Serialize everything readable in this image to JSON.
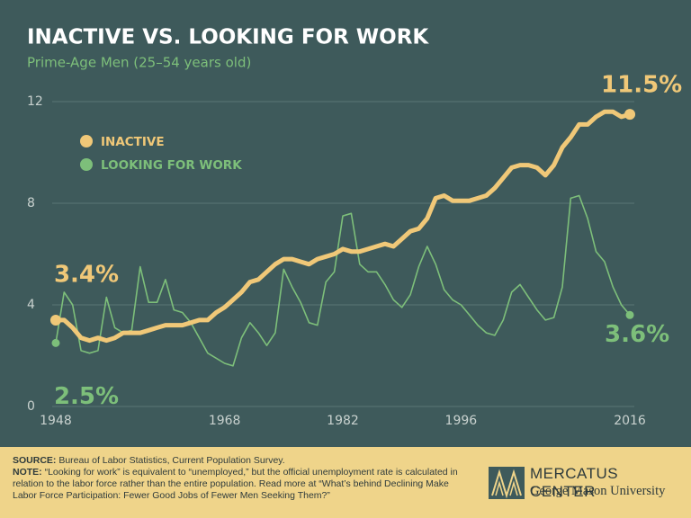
{
  "chart_data": {
    "type": "line",
    "title": "INACTIVE VS. LOOKING FOR WORK",
    "subtitle": "Prime-Age Men (25–54 years old)",
    "x": [
      1948,
      1949,
      1950,
      1951,
      1952,
      1953,
      1954,
      1955,
      1956,
      1957,
      1958,
      1959,
      1960,
      1961,
      1962,
      1963,
      1964,
      1965,
      1966,
      1967,
      1968,
      1969,
      1970,
      1971,
      1972,
      1973,
      1974,
      1975,
      1976,
      1977,
      1978,
      1979,
      1980,
      1981,
      1982,
      1983,
      1984,
      1985,
      1986,
      1987,
      1988,
      1989,
      1990,
      1991,
      1992,
      1993,
      1994,
      1995,
      1996,
      1997,
      1998,
      1999,
      2000,
      2001,
      2002,
      2003,
      2004,
      2005,
      2006,
      2007,
      2008,
      2009,
      2010,
      2011,
      2012,
      2013,
      2014,
      2015,
      2016
    ],
    "xlim": [
      1946,
      2018
    ],
    "xticks": [
      1948,
      1968,
      1982,
      1996,
      2016
    ],
    "ylim": [
      0,
      12
    ],
    "yticks": [
      0,
      4,
      8,
      12
    ],
    "grid": true,
    "series": [
      {
        "name": "INACTIVE",
        "color": "#f0c878",
        "start_label": "3.4%",
        "end_label": "11.5%",
        "values": [
          3.4,
          3.4,
          3.1,
          2.7,
          2.6,
          2.7,
          2.6,
          2.7,
          2.9,
          2.9,
          2.9,
          3.0,
          3.1,
          3.2,
          3.2,
          3.2,
          3.3,
          3.4,
          3.4,
          3.7,
          3.9,
          4.2,
          4.5,
          4.9,
          5.0,
          5.3,
          5.6,
          5.8,
          5.8,
          5.7,
          5.6,
          5.8,
          5.9,
          6.0,
          6.2,
          6.1,
          6.1,
          6.2,
          6.3,
          6.4,
          6.3,
          6.6,
          6.9,
          7.0,
          7.4,
          8.2,
          8.3,
          8.1,
          8.1,
          8.1,
          8.2,
          8.3,
          8.6,
          9.0,
          9.4,
          9.5,
          9.5,
          9.4,
          9.1,
          9.5,
          10.2,
          10.6,
          11.1,
          11.1,
          11.4,
          11.6,
          11.6,
          11.4,
          11.5
        ]
      },
      {
        "name": "LOOKING FOR WORK",
        "color": "#7dbf7a",
        "start_label": "2.5%",
        "end_label": "3.6%",
        "values": [
          2.5,
          4.5,
          4.0,
          2.2,
          2.1,
          2.2,
          4.3,
          3.1,
          2.9,
          3.0,
          5.5,
          4.1,
          4.1,
          5.0,
          3.8,
          3.7,
          3.3,
          2.7,
          2.1,
          1.9,
          1.7,
          1.6,
          2.7,
          3.3,
          2.9,
          2.4,
          2.9,
          5.4,
          4.7,
          4.1,
          3.3,
          3.2,
          4.9,
          5.3,
          7.5,
          7.6,
          5.6,
          5.3,
          5.3,
          4.8,
          4.2,
          3.9,
          4.4,
          5.5,
          6.3,
          5.6,
          4.6,
          4.2,
          4.0,
          3.6,
          3.2,
          2.9,
          2.8,
          3.4,
          4.5,
          4.8,
          4.3,
          3.8,
          3.4,
          3.5,
          4.7,
          8.2,
          8.3,
          7.4,
          6.1,
          5.7,
          4.7,
          4.0,
          3.6
        ]
      }
    ]
  },
  "footer": {
    "source_label": "SOURCE:",
    "source": "Bureau of Labor Statistics, Current Population Survey.",
    "note_label": "NOTE:",
    "note": "“Looking for work” is equivalent to “unemployed,” but the official unemployment rate is calculated in relation to the labor force rather than the entire population. Read more at “What’s behind Declining Make Labor Force Participation: Fewer Good Jobs of Fewer Men Seeking Them?”",
    "logo_title": "MERCATUS CENTER",
    "logo_subtitle": "George Mason University"
  }
}
